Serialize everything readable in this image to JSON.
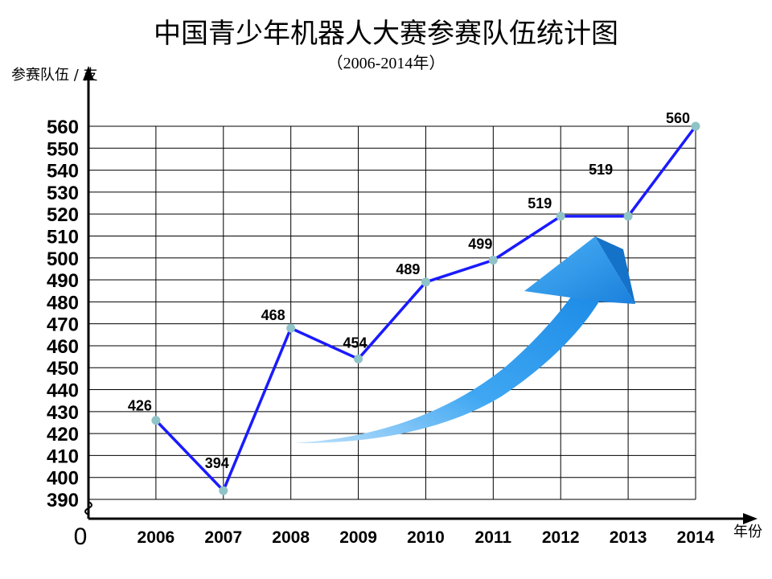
{
  "chart_data": {
    "type": "line",
    "title": "中国青少年机器人大赛参赛队伍统计图",
    "subtitle": "（2006-2014年）",
    "ylabel": "参赛队伍 / 支",
    "xlabel": "年份",
    "origin_label": "0",
    "categories": [
      "2006",
      "2007",
      "2008",
      "2009",
      "2010",
      "2011",
      "2012",
      "2013",
      "2014"
    ],
    "values": [
      426,
      394,
      468,
      454,
      489,
      499,
      519,
      519,
      560
    ],
    "data_labels": [
      "426",
      "394",
      "468",
      "454",
      "489",
      "499",
      "519",
      "519",
      "560"
    ],
    "ylim": [
      390,
      560
    ],
    "yticks": [
      390,
      400,
      410,
      420,
      430,
      440,
      450,
      460,
      470,
      480,
      490,
      500,
      510,
      520,
      530,
      540,
      550,
      560
    ],
    "grid": true,
    "axis_break": true,
    "line_color": "#1a1aff",
    "marker_color": "#8fc3c8",
    "arrow_color": "#1e90e8"
  }
}
